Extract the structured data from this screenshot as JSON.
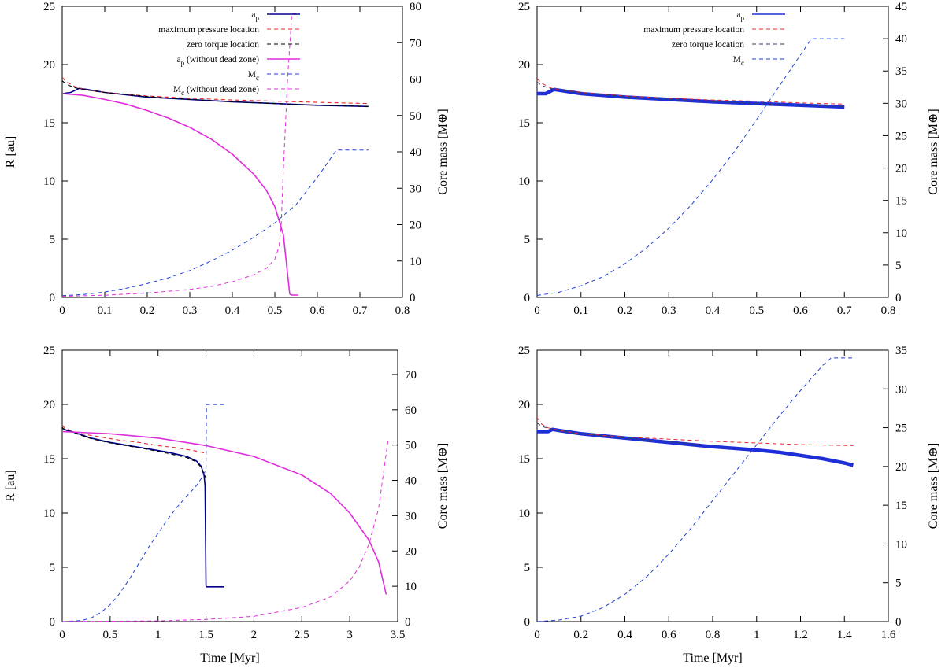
{
  "chart_data": [
    {
      "type": "line",
      "panel": "top-left",
      "xlim": [
        0,
        0.8
      ],
      "xticks": [
        "0",
        "0.1",
        "0.2",
        "0.3",
        "0.4",
        "0.5",
        "0.6",
        "0.7",
        "0.8"
      ],
      "xtick_values": [
        0,
        0.1,
        0.2,
        0.3,
        0.4,
        0.5,
        0.6,
        0.7,
        0.8
      ],
      "ylim": [
        0,
        25
      ],
      "yticks": [
        "0",
        "5",
        "10",
        "15",
        "20",
        "25"
      ],
      "ytick_values": [
        0,
        5,
        10,
        15,
        20,
        25
      ],
      "y2lim": [
        0,
        80
      ],
      "y2ticks": [
        "0",
        "10",
        "20",
        "30",
        "40",
        "50",
        "60",
        "70",
        "80"
      ],
      "y2tick_values": [
        0,
        10,
        20,
        30,
        40,
        50,
        60,
        70,
        80
      ],
      "xlabel": "",
      "ylabel": "R [au]",
      "y2label": "Core mass [M⊕]",
      "legend": "top-right",
      "series": [
        {
          "name": "a_p",
          "label": "ap",
          "sub": "p",
          "color": "#00008b",
          "style": "solid",
          "width": 1.6,
          "axis": "y",
          "x": [
            0,
            0.02,
            0.04,
            0.06,
            0.1,
            0.2,
            0.3,
            0.4,
            0.5,
            0.6,
            0.72
          ],
          "y": [
            17.5,
            17.6,
            17.95,
            17.85,
            17.6,
            17.2,
            17.0,
            16.8,
            16.65,
            16.5,
            16.4
          ]
        },
        {
          "name": "maximum pressure location",
          "label": "maximum pressure location",
          "color": "#e8262c",
          "style": "dash",
          "width": 1.1,
          "axis": "y",
          "x": [
            0,
            0.01,
            0.03,
            0.06,
            0.1,
            0.2,
            0.3,
            0.4,
            0.5,
            0.6,
            0.72
          ],
          "y": [
            18.9,
            18.5,
            18.1,
            17.8,
            17.6,
            17.3,
            17.1,
            16.95,
            16.85,
            16.75,
            16.65
          ]
        },
        {
          "name": "zero torque location",
          "label": "zero torque location",
          "color": "#000000",
          "style": "dash",
          "width": 1.1,
          "axis": "y",
          "x": [
            0,
            0.01,
            0.03,
            0.06,
            0.1,
            0.2,
            0.3,
            0.4,
            0.5,
            0.6,
            0.72
          ],
          "y": [
            18.6,
            18.3,
            18.0,
            17.8,
            17.6,
            17.25,
            17.0,
            16.8,
            16.65,
            16.5,
            16.4
          ]
        },
        {
          "name": "a_p (without dead zone)",
          "label": "ap (without dead zone)",
          "sub": "p",
          "color": "#e02ddc",
          "style": "solid",
          "width": 1.6,
          "axis": "y",
          "x": [
            0,
            0.05,
            0.1,
            0.15,
            0.2,
            0.25,
            0.3,
            0.35,
            0.4,
            0.45,
            0.48,
            0.5,
            0.52,
            0.535,
            0.54,
            0.555
          ],
          "y": [
            17.5,
            17.35,
            17.0,
            16.6,
            16.05,
            15.4,
            14.6,
            13.6,
            12.3,
            10.6,
            9.2,
            7.8,
            5.4,
            0.3,
            0.2,
            0.2
          ]
        },
        {
          "name": "M_c",
          "label": "Mc",
          "sub": "c",
          "color": "#1f3fd6",
          "style": "dash",
          "width": 1.0,
          "axis": "y2",
          "x": [
            0,
            0.05,
            0.1,
            0.15,
            0.2,
            0.25,
            0.3,
            0.35,
            0.4,
            0.45,
            0.5,
            0.55,
            0.6,
            0.645,
            0.72
          ],
          "y": [
            0.5,
            0.8,
            1.5,
            2.5,
            3.8,
            5.4,
            7.4,
            10,
            13,
            16.5,
            20.5,
            25.5,
            33,
            40.5,
            40.5
          ]
        },
        {
          "name": "M_c (without dead zone)",
          "label": "Mc (without dead zone)",
          "sub": "c",
          "color": "#e02ddc",
          "style": "dash",
          "width": 1.0,
          "axis": "y2",
          "x": [
            0,
            0.1,
            0.2,
            0.3,
            0.35,
            0.4,
            0.45,
            0.48,
            0.5,
            0.51,
            0.515,
            0.52,
            0.53,
            0.54,
            0.55
          ],
          "y": [
            0.3,
            0.6,
            1.2,
            2.2,
            3.0,
            4.3,
            6.2,
            8.0,
            10.5,
            14,
            20,
            35,
            60,
            78,
            78
          ]
        }
      ]
    },
    {
      "type": "line",
      "panel": "top-right",
      "xlim": [
        0,
        0.8
      ],
      "xticks": [
        "0",
        "0.1",
        "0.2",
        "0.3",
        "0.4",
        "0.5",
        "0.6",
        "0.7",
        "0.8"
      ],
      "xtick_values": [
        0,
        0.1,
        0.2,
        0.3,
        0.4,
        0.5,
        0.6,
        0.7,
        0.8
      ],
      "ylim": [
        0,
        25
      ],
      "yticks": [
        "0",
        "5",
        "10",
        "15",
        "20",
        "25"
      ],
      "ytick_values": [
        0,
        5,
        10,
        15,
        20,
        25
      ],
      "y2lim": [
        0,
        45
      ],
      "y2ticks": [
        "0",
        "5",
        "10",
        "15",
        "20",
        "25",
        "30",
        "35",
        "40",
        "45"
      ],
      "y2tick_values": [
        0,
        5,
        10,
        15,
        20,
        25,
        30,
        35,
        40,
        45
      ],
      "xlabel": "",
      "ylabel": "",
      "y2label": "Core mass [M⊕]",
      "legend": "top-right",
      "series": [
        {
          "name": "a_p",
          "label": "ap",
          "sub": "p",
          "color": "#1f2fd8",
          "style": "thick",
          "width": 4.5,
          "axis": "y",
          "x": [
            0,
            0.02,
            0.035,
            0.04,
            0.1,
            0.2,
            0.3,
            0.4,
            0.5,
            0.6,
            0.7
          ],
          "y": [
            17.5,
            17.5,
            17.8,
            17.85,
            17.5,
            17.2,
            17.0,
            16.8,
            16.65,
            16.5,
            16.35
          ]
        },
        {
          "name": "maximum pressure location",
          "label": "maximum pressure location",
          "color": "#e8262c",
          "style": "dash",
          "width": 1.0,
          "axis": "y",
          "x": [
            0,
            0.01,
            0.03,
            0.06,
            0.1,
            0.2,
            0.3,
            0.4,
            0.5,
            0.6,
            0.7
          ],
          "y": [
            18.8,
            18.4,
            18.0,
            17.8,
            17.6,
            17.3,
            17.1,
            16.95,
            16.85,
            16.7,
            16.6
          ]
        },
        {
          "name": "zero torque location",
          "label": "zero torque location",
          "color": "#2f3f6a",
          "style": "dash",
          "width": 1.0,
          "axis": "y",
          "x": [
            0,
            0.01,
            0.03,
            0.06,
            0.1,
            0.2,
            0.3,
            0.4,
            0.5,
            0.6,
            0.7
          ],
          "y": [
            18.5,
            18.2,
            17.95,
            17.75,
            17.55,
            17.25,
            17.0,
            16.8,
            16.65,
            16.5,
            16.4
          ]
        },
        {
          "name": "M_c",
          "label": "Mc",
          "sub": "c",
          "color": "#1f3fd6",
          "style": "dash",
          "width": 1.0,
          "axis": "y2",
          "x": [
            0,
            0.05,
            0.1,
            0.15,
            0.2,
            0.25,
            0.3,
            0.35,
            0.4,
            0.45,
            0.5,
            0.55,
            0.6,
            0.625,
            0.7
          ],
          "y": [
            0.3,
            0.8,
            1.8,
            3.2,
            5.2,
            7.7,
            10.7,
            14.2,
            18.2,
            22.6,
            27.5,
            32.5,
            37.5,
            40,
            40
          ]
        }
      ]
    },
    {
      "type": "line",
      "panel": "bottom-left",
      "xlim": [
        0,
        3.5
      ],
      "xticks": [
        "0",
        "0.5",
        "1",
        "1.5",
        "2",
        "2.5",
        "3",
        "3.5"
      ],
      "xtick_values": [
        0,
        0.5,
        1,
        1.5,
        2,
        2.5,
        3,
        3.5
      ],
      "ylim": [
        0,
        25
      ],
      "yticks": [
        "0",
        "5",
        "10",
        "15",
        "20",
        "25"
      ],
      "ytick_values": [
        0,
        5,
        10,
        15,
        20,
        25
      ],
      "y2lim": [
        0,
        76.9
      ],
      "y2ticks": [
        "0",
        "10",
        "20",
        "30",
        "40",
        "50",
        "60",
        "70"
      ],
      "y2tick_values": [
        0,
        10,
        20,
        30,
        40,
        50,
        60,
        70
      ],
      "xlabel": "Time [Myr]",
      "ylabel": "R [au]",
      "y2label": "Core mass [M⊕]",
      "series": [
        {
          "name": "a_p",
          "color": "#00008b",
          "style": "solid",
          "width": 1.6,
          "axis": "y",
          "x": [
            0,
            0.05,
            0.1,
            0.2,
            0.3,
            0.5,
            0.7,
            0.9,
            1.1,
            1.3,
            1.4,
            1.45,
            1.48,
            1.49,
            1.5,
            1.505,
            1.69
          ],
          "y": [
            17.8,
            17.6,
            17.5,
            17.2,
            16.9,
            16.5,
            16.2,
            15.9,
            15.6,
            15.2,
            14.8,
            14.3,
            13.5,
            12.5,
            3.3,
            3.2,
            3.2
          ]
        },
        {
          "name": "maximum pressure location",
          "color": "#e8262c",
          "style": "dash",
          "width": 1.1,
          "axis": "y",
          "x": [
            0,
            0.03,
            0.1,
            0.2,
            0.4,
            0.6,
            0.8,
            1.0,
            1.2,
            1.4,
            1.5
          ],
          "y": [
            18.1,
            17.8,
            17.55,
            17.3,
            17.0,
            16.7,
            16.5,
            16.2,
            16.0,
            15.7,
            15.5
          ]
        },
        {
          "name": "zero torque location",
          "color": "#000000",
          "style": "dash",
          "width": 1.1,
          "axis": "y",
          "x": [
            0,
            0.03,
            0.1,
            0.2,
            0.3,
            0.5,
            0.7,
            0.9,
            1.1,
            1.3,
            1.4,
            1.45,
            1.5
          ],
          "y": [
            17.9,
            17.6,
            17.45,
            17.15,
            16.85,
            16.45,
            16.15,
            15.85,
            15.5,
            15.1,
            14.7,
            14.2,
            13.2
          ]
        },
        {
          "name": "a_p (without dead zone)",
          "color": "#e02ddc",
          "style": "solid",
          "width": 1.6,
          "axis": "y",
          "x": [
            0,
            0.5,
            1.0,
            1.5,
            2.0,
            2.5,
            2.8,
            3.0,
            3.2,
            3.3,
            3.38
          ],
          "y": [
            17.5,
            17.3,
            16.9,
            16.2,
            15.2,
            13.5,
            11.8,
            10.0,
            7.5,
            5.5,
            2.5
          ]
        },
        {
          "name": "M_c",
          "color": "#1f3fd6",
          "style": "dash",
          "width": 1.0,
          "axis": "y2",
          "x": [
            0,
            0.2,
            0.3,
            0.4,
            0.5,
            0.6,
            0.7,
            0.8,
            0.9,
            1.0,
            1.1,
            1.2,
            1.3,
            1.4,
            1.45,
            1.5,
            1.505,
            1.7
          ],
          "y": [
            0,
            0.3,
            1.0,
            2.5,
            4.8,
            8.0,
            12.0,
            16.5,
            21.0,
            25.0,
            29.0,
            32.5,
            35.5,
            38.5,
            40.5,
            43,
            61.5,
            61.5
          ]
        },
        {
          "name": "M_c (without dead zone)",
          "color": "#e02ddc",
          "style": "dash",
          "width": 1.0,
          "axis": "y2",
          "x": [
            0,
            1.0,
            1.5,
            2.0,
            2.5,
            2.8,
            3.0,
            3.1,
            3.2,
            3.3,
            3.4
          ],
          "y": [
            0,
            0.2,
            0.6,
            1.5,
            4.0,
            7.0,
            11.5,
            15.5,
            22.0,
            32.0,
            51.5
          ]
        }
      ]
    },
    {
      "type": "line",
      "panel": "bottom-right",
      "xlim": [
        0,
        1.6
      ],
      "xticks": [
        "0",
        "0.2",
        "0.4",
        "0.6",
        "0.8",
        "1",
        "1.2",
        "1.4",
        "1.6"
      ],
      "xtick_values": [
        0,
        0.2,
        0.4,
        0.6,
        0.8,
        1,
        1.2,
        1.4,
        1.6
      ],
      "ylim": [
        0,
        25
      ],
      "yticks": [
        "0",
        "5",
        "10",
        "15",
        "20",
        "25"
      ],
      "ytick_values": [
        0,
        5,
        10,
        15,
        20,
        25
      ],
      "y2lim": [
        0,
        35
      ],
      "y2ticks": [
        "0",
        "5",
        "10",
        "15",
        "20",
        "25",
        "30",
        "35"
      ],
      "y2tick_values": [
        0,
        5,
        10,
        15,
        20,
        25,
        30,
        35
      ],
      "xlabel": "Time [Myr]",
      "ylabel": "",
      "y2label": "Core mass [M⊕]",
      "series": [
        {
          "name": "a_p",
          "color": "#1f2fd8",
          "style": "thick",
          "width": 4.5,
          "axis": "y",
          "x": [
            0,
            0.05,
            0.07,
            0.1,
            0.2,
            0.4,
            0.6,
            0.8,
            1.0,
            1.1,
            1.2,
            1.3,
            1.4,
            1.44
          ],
          "y": [
            17.5,
            17.5,
            17.7,
            17.6,
            17.3,
            16.9,
            16.5,
            16.1,
            15.8,
            15.6,
            15.3,
            15.0,
            14.6,
            14.4
          ]
        },
        {
          "name": "maximum pressure location",
          "color": "#e8262c",
          "style": "dash",
          "width": 1.0,
          "axis": "y",
          "x": [
            0,
            0.02,
            0.05,
            0.1,
            0.2,
            0.4,
            0.6,
            0.8,
            1.0,
            1.2,
            1.44
          ],
          "y": [
            18.8,
            18.2,
            17.85,
            17.6,
            17.3,
            17.0,
            16.8,
            16.6,
            16.45,
            16.3,
            16.2
          ]
        },
        {
          "name": "zero torque location",
          "color": "#2f3f6a",
          "style": "dash",
          "width": 1.0,
          "axis": "y",
          "x": [
            0,
            0.02,
            0.05,
            0.1,
            0.2,
            0.4,
            0.6,
            0.8
          ],
          "y": [
            18.3,
            18.0,
            17.8,
            17.55,
            17.3,
            16.9,
            16.55,
            16.2
          ]
        },
        {
          "name": "M_c",
          "color": "#1f3fd6",
          "style": "dash",
          "width": 1.0,
          "axis": "y2",
          "x": [
            0,
            0.1,
            0.2,
            0.3,
            0.4,
            0.5,
            0.6,
            0.7,
            0.8,
            0.9,
            1.0,
            1.1,
            1.2,
            1.3,
            1.34,
            1.44
          ],
          "y": [
            0,
            0.2,
            0.7,
            1.8,
            3.5,
            5.8,
            8.7,
            12.0,
            15.6,
            19.2,
            22.8,
            26.4,
            29.8,
            33.0,
            34.0,
            34.0
          ]
        }
      ]
    }
  ]
}
